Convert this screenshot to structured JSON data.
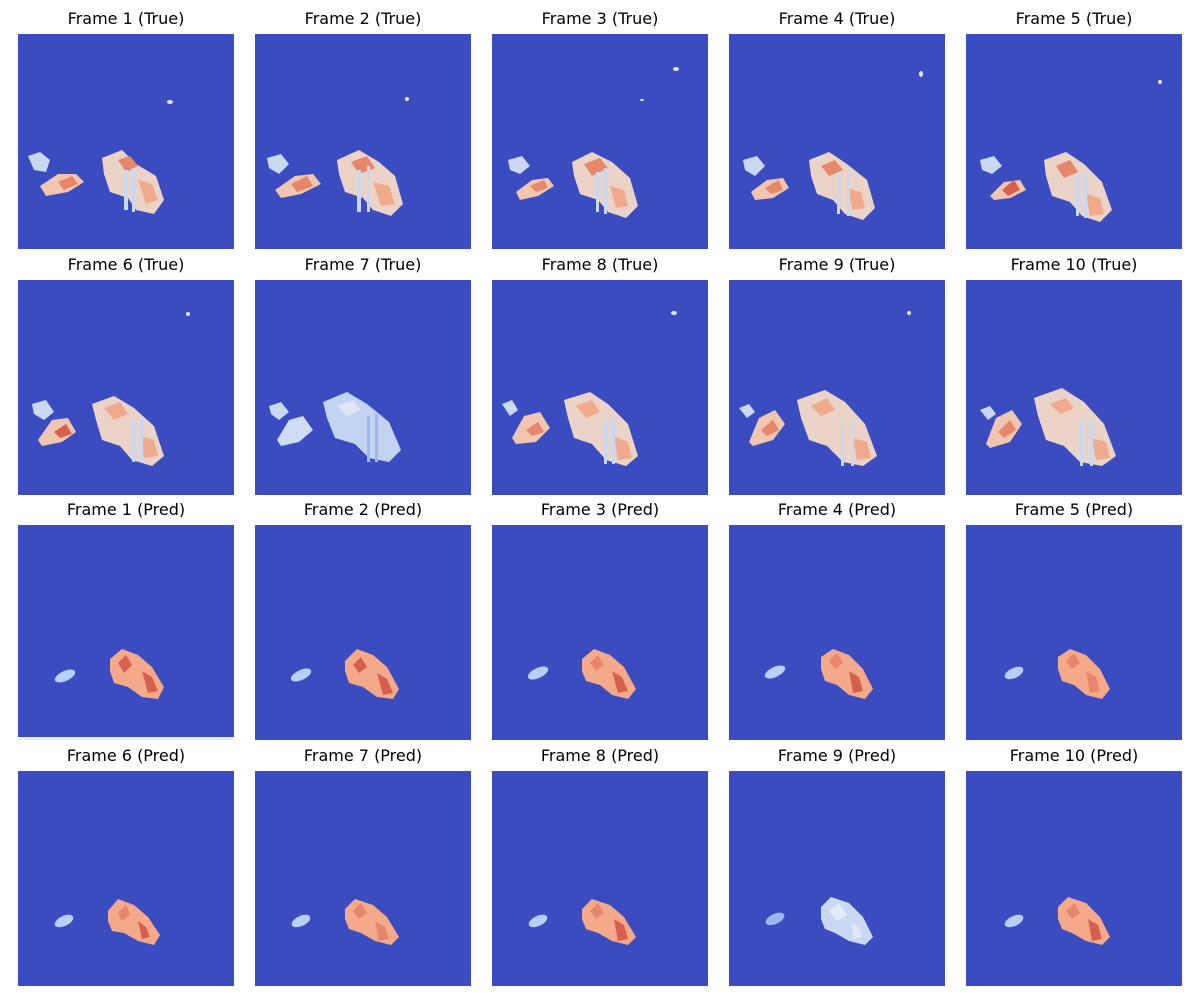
{
  "colors": {
    "background": "#3b4cc0",
    "cold": "#b8d0f9",
    "neutral": "#e8d6cf",
    "warm": "#f4a98a",
    "hot": "#d6604d"
  },
  "rows": [
    {
      "row_label": "true",
      "frames": [
        {
          "title": "Frame 1 (True)"
        },
        {
          "title": "Frame 2 (True)"
        },
        {
          "title": "Frame 3 (True)"
        },
        {
          "title": "Frame 4 (True)"
        },
        {
          "title": "Frame 5 (True)"
        }
      ]
    },
    {
      "row_label": "true",
      "frames": [
        {
          "title": "Frame 6 (True)"
        },
        {
          "title": "Frame 7 (True)"
        },
        {
          "title": "Frame 8 (True)"
        },
        {
          "title": "Frame 9 (True)"
        },
        {
          "title": "Frame 10 (True)"
        }
      ]
    },
    {
      "row_label": "pred",
      "frames": [
        {
          "title": "Frame 1 (Pred)"
        },
        {
          "title": "Frame 2 (Pred)"
        },
        {
          "title": "Frame 3 (Pred)"
        },
        {
          "title": "Frame 4 (Pred)"
        },
        {
          "title": "Frame 5 (Pred)"
        }
      ]
    },
    {
      "row_label": "pred",
      "frames": [
        {
          "title": "Frame 6 (Pred)"
        },
        {
          "title": "Frame 7 (Pred)"
        },
        {
          "title": "Frame 8 (Pred)"
        },
        {
          "title": "Frame 9 (Pred)"
        },
        {
          "title": "Frame 10 (Pred)"
        }
      ]
    }
  ]
}
